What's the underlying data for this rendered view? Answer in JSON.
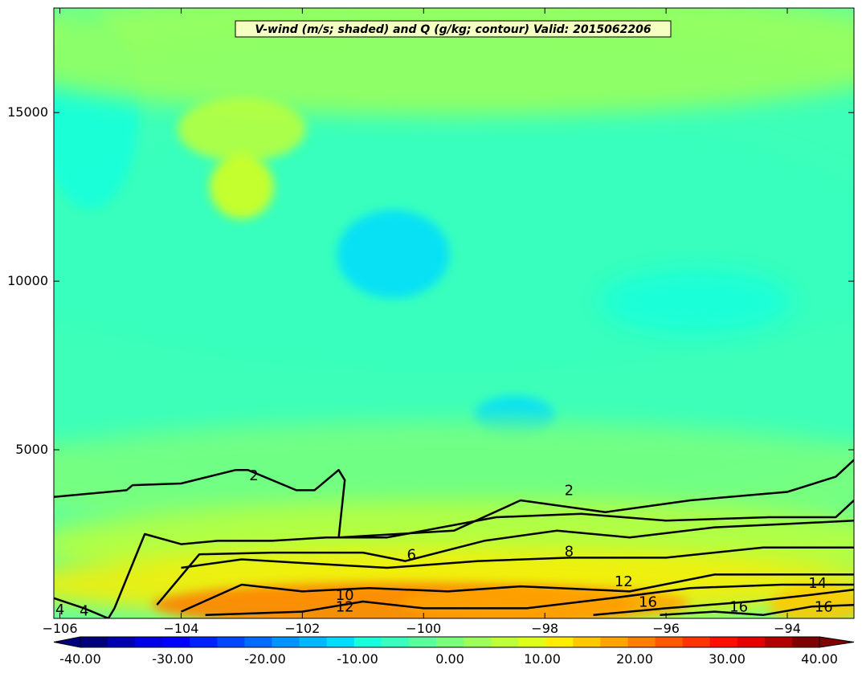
{
  "chart_data": {
    "type": "heatmap",
    "title": "V-wind (m/s; shaded) and Q (g/kg; contour) Valid: 2015062206",
    "xlabel": "",
    "ylabel": "",
    "xlim": [
      -106.1,
      -92.9
    ],
    "ylim": [
      0,
      18100
    ],
    "x_ticks": [
      -106,
      -104,
      -102,
      -100,
      -98,
      -96,
      -94
    ],
    "x_tick_labels": [
      "−106",
      "−104",
      "−102",
      "−100",
      "−98",
      "−96",
      "−94"
    ],
    "y_ticks": [
      5000,
      10000,
      15000
    ],
    "y_tick_labels": [
      "5000",
      "10000",
      "15000"
    ],
    "grid": false,
    "shading": {
      "variable": "V-wind",
      "units": "m/s",
      "colormap": "jet",
      "range": [
        -40,
        40
      ],
      "typical_values": {
        "upper_levels": -5,
        "jet_core_near_-101_10000": -12,
        "mid_levels": -7,
        "low_levels": 12,
        "low_level_jet_max_near_-102_500": 24
      }
    },
    "colorbar": {
      "extend": "both",
      "labels": [
        "-40.00",
        "-30.00",
        "-20.00",
        "-10.00",
        "0.00",
        "10.00",
        "20.00",
        "30.00",
        "40.00"
      ],
      "values": [
        -40,
        -30,
        -20,
        -10,
        0,
        10,
        20,
        30,
        40
      ],
      "colors": [
        "#00007f",
        "#0000b2",
        "#0000e5",
        "#0000ff",
        "#0022ff",
        "#0048ff",
        "#006cff",
        "#0094ff",
        "#00b8ff",
        "#00dcfe",
        "#18ffdd",
        "#38ffbe",
        "#59ff9d",
        "#7aff7d",
        "#9dff59",
        "#beff38",
        "#ddff18",
        "#feed00",
        "#ffc800",
        "#ffa300",
        "#ff7e00",
        "#ff5900",
        "#ff3400",
        "#ff0e00",
        "#e50000",
        "#b20000",
        "#7f0000"
      ]
    },
    "contours": {
      "variable": "Q",
      "units": "g/kg",
      "levels": [
        2,
        4,
        6,
        8,
        10,
        12,
        14,
        16
      ],
      "labels": [
        "2",
        "2",
        "4",
        "4",
        "6",
        "8",
        "10",
        "12",
        "12",
        "14",
        "16",
        "16",
        "16"
      ],
      "lines": [
        {
          "level": 2,
          "x": [
            -106.1,
            -104.9,
            -104.8,
            -104.0,
            -103.1,
            -102.9,
            -102.1,
            -101.8,
            -101.4,
            -101.3,
            -101.4,
            -99.5,
            -98.4,
            -97.0,
            -95.6,
            -94.0,
            -93.2,
            -92.9
          ],
          "y": [
            3600,
            3800,
            3950,
            4000,
            4400,
            4400,
            3800,
            3800,
            4400,
            4100,
            2400,
            2600,
            3500,
            3150,
            3500,
            3750,
            4200,
            4700
          ]
        },
        {
          "level": 4,
          "x": [
            -106.1,
            -105.6,
            -105.2,
            -105.1,
            -104.6,
            -104.0,
            -103.4,
            -102.5,
            -101.6,
            -100.6,
            -98.8,
            -97.4,
            -96.0,
            -94.3,
            -93.2,
            -92.9
          ],
          "y": [
            600,
            300,
            0,
            300,
            2500,
            2200,
            2300,
            2300,
            2400,
            2400,
            3000,
            3100,
            2900,
            3000,
            3000,
            3500
          ]
        },
        {
          "level": 6,
          "x": [
            -104.4,
            -103.7,
            -102.5,
            -101.0,
            -100.3,
            -99.0,
            -97.8,
            -96.6,
            -95.2,
            -94.0,
            -92.9
          ],
          "y": [
            400,
            1900,
            1950,
            1950,
            1700,
            2300,
            2600,
            2400,
            2700,
            2800,
            2900
          ]
        },
        {
          "level": 8,
          "x": [
            -104.0,
            -103.0,
            -101.6,
            -100.6,
            -99.1,
            -97.6,
            -96.0,
            -94.4,
            -92.9
          ],
          "y": [
            1500,
            1750,
            1600,
            1500,
            1700,
            1800,
            1800,
            2100,
            2100
          ]
        },
        {
          "level": 10,
          "x": [
            -104.0,
            -103.0,
            -102.0,
            -100.9,
            -99.6,
            -98.4,
            -96.6,
            -95.2,
            -92.9
          ],
          "y": [
            200,
            1000,
            800,
            900,
            800,
            950,
            800,
            1300,
            1300
          ]
        },
        {
          "level": 12,
          "x": [
            -103.6,
            -102.0,
            -101.0,
            -100.0,
            -98.3,
            -96.9,
            -95.6,
            -94.1,
            -92.9
          ],
          "y": [
            100,
            200,
            500,
            300,
            300,
            600,
            900,
            1000,
            1000
          ]
        },
        {
          "level": 14,
          "x": [
            -97.2,
            -96.0,
            -94.6,
            -93.6,
            -92.9
          ],
          "y": [
            100,
            300,
            500,
            700,
            850
          ]
        },
        {
          "level": 16,
          "x": [
            -96.1,
            -95.2,
            -94.4,
            -93.6,
            -92.9
          ],
          "y": [
            100,
            200,
            100,
            350,
            400
          ]
        }
      ]
    }
  }
}
